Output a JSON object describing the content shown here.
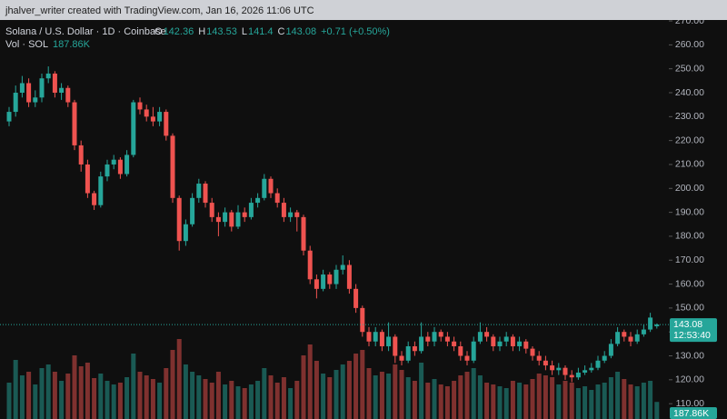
{
  "chart_data": {
    "type": "candlestick",
    "attribution": "jhalver_writer created with TradingView.com, Jan 16, 2026 11:06 UTC",
    "title": "Solana / U.S. Dollar · 1D · Coinbase",
    "ohlc_letters": [
      "O",
      "H",
      "L",
      "C"
    ],
    "change_label": "+0.71 (+0.50%)",
    "countdown": "12:53:40",
    "up_color": "#26a69a",
    "down_color": "#ef5350",
    "ylim": [
      103.6,
      270.4
    ],
    "yticks": [
      {
        "value": 110,
        "label": "110.00"
      },
      {
        "value": 120,
        "label": "120.00"
      },
      {
        "value": 130,
        "label": "130.00"
      },
      {
        "value": 140,
        "label": "140.00"
      },
      {
        "value": 150,
        "label": "150.00"
      },
      {
        "value": 160,
        "label": "160.00"
      },
      {
        "value": 170,
        "label": "170.00"
      },
      {
        "value": 180,
        "label": "180.00"
      },
      {
        "value": 190,
        "label": "190.00"
      },
      {
        "value": 200,
        "label": "200.00"
      },
      {
        "value": 210,
        "label": "210.00"
      },
      {
        "value": 220,
        "label": "220.00"
      },
      {
        "value": 230,
        "label": "230.00"
      },
      {
        "value": 240,
        "label": "240.00"
      },
      {
        "value": 250,
        "label": "250.00"
      },
      {
        "value": 260,
        "label": "260.00"
      },
      {
        "value": 270,
        "label": "270.00"
      }
    ],
    "candles": [
      [
        228,
        234,
        226,
        232
      ],
      [
        232,
        243,
        230,
        240
      ],
      [
        240,
        247,
        238,
        244
      ],
      [
        244,
        246,
        234,
        236
      ],
      [
        236,
        241,
        234,
        238
      ],
      [
        238,
        248,
        236,
        246
      ],
      [
        246,
        251,
        244,
        248
      ],
      [
        248,
        249,
        238,
        240
      ],
      [
        240,
        244,
        237,
        242
      ],
      [
        242,
        243,
        234,
        236
      ],
      [
        236,
        237,
        216,
        218
      ],
      [
        218,
        220,
        207,
        210
      ],
      [
        210,
        212,
        196,
        198
      ],
      [
        198,
        199,
        191,
        193
      ],
      [
        193,
        207,
        192,
        205
      ],
      [
        205,
        212,
        203,
        210
      ],
      [
        210,
        214,
        208,
        212
      ],
      [
        212,
        213,
        204,
        206
      ],
      [
        206,
        216,
        205,
        214
      ],
      [
        214,
        237,
        213,
        236
      ],
      [
        236,
        238,
        231,
        233
      ],
      [
        233,
        235,
        228,
        230
      ],
      [
        230,
        234,
        226,
        228
      ],
      [
        228,
        234,
        226,
        232
      ],
      [
        232,
        233,
        220,
        222
      ],
      [
        222,
        223,
        194,
        196
      ],
      [
        196,
        197,
        174,
        178
      ],
      [
        178,
        187,
        176,
        185
      ],
      [
        185,
        198,
        184,
        196
      ],
      [
        196,
        204,
        194,
        202
      ],
      [
        202,
        203,
        192,
        194
      ],
      [
        194,
        196,
        186,
        188
      ],
      [
        188,
        190,
        180,
        186
      ],
      [
        186,
        192,
        184,
        190
      ],
      [
        190,
        191,
        182,
        184
      ],
      [
        184,
        193,
        183,
        190
      ],
      [
        190,
        192,
        186,
        188
      ],
      [
        188,
        196,
        187,
        194
      ],
      [
        194,
        198,
        192,
        196
      ],
      [
        196,
        206,
        195,
        204
      ],
      [
        204,
        205,
        196,
        198
      ],
      [
        198,
        200,
        192,
        194
      ],
      [
        194,
        196,
        186,
        188
      ],
      [
        188,
        192,
        186,
        190
      ],
      [
        190,
        191,
        182,
        188
      ],
      [
        188,
        189,
        172,
        174
      ],
      [
        174,
        176,
        160,
        162
      ],
      [
        162,
        164,
        154,
        158
      ],
      [
        158,
        166,
        157,
        164
      ],
      [
        164,
        165,
        158,
        160
      ],
      [
        160,
        168,
        158,
        166
      ],
      [
        166,
        172,
        164,
        168
      ],
      [
        168,
        170,
        156,
        158
      ],
      [
        158,
        160,
        148,
        150
      ],
      [
        150,
        151,
        138,
        140
      ],
      [
        140,
        142,
        134,
        136
      ],
      [
        136,
        142,
        134,
        140
      ],
      [
        140,
        141,
        132,
        134
      ],
      [
        134,
        144,
        132,
        138
      ],
      [
        138,
        139,
        127,
        130
      ],
      [
        130,
        132,
        126,
        128
      ],
      [
        128,
        136,
        127,
        134
      ],
      [
        134,
        136,
        130,
        132
      ],
      [
        132,
        144,
        131,
        138
      ],
      [
        138,
        140,
        134,
        136
      ],
      [
        136,
        142,
        134,
        140
      ],
      [
        140,
        141,
        136,
        138
      ],
      [
        138,
        140,
        134,
        136
      ],
      [
        136,
        138,
        132,
        134
      ],
      [
        134,
        136,
        128,
        130
      ],
      [
        130,
        132,
        126,
        128
      ],
      [
        128,
        138,
        127,
        136
      ],
      [
        136,
        144,
        135,
        140
      ],
      [
        140,
        142,
        136,
        138
      ],
      [
        138,
        139,
        132,
        134
      ],
      [
        134,
        138,
        132,
        136
      ],
      [
        136,
        140,
        134,
        138
      ],
      [
        138,
        139,
        132,
        134
      ],
      [
        134,
        138,
        132,
        136
      ],
      [
        136,
        137,
        131,
        133
      ],
      [
        133,
        134,
        128,
        130
      ],
      [
        130,
        132,
        126,
        128
      ],
      [
        128,
        130,
        124,
        126
      ],
      [
        126,
        128,
        122,
        124
      ],
      [
        124,
        127,
        122,
        125
      ],
      [
        125,
        126,
        120,
        122
      ],
      [
        122,
        124,
        119,
        121
      ],
      [
        121,
        125,
        120,
        123
      ],
      [
        123,
        126,
        122,
        124
      ],
      [
        124,
        127,
        123,
        125
      ],
      [
        125,
        130,
        124,
        128
      ],
      [
        128,
        132,
        127,
        130
      ],
      [
        130,
        137,
        129,
        135
      ],
      [
        135,
        142,
        134,
        140
      ],
      [
        140,
        141,
        136,
        138
      ],
      [
        138,
        140,
        134,
        136
      ],
      [
        136,
        141,
        135,
        139
      ],
      [
        139,
        143,
        138,
        141
      ],
      [
        141,
        148,
        140,
        146
      ],
      [
        142.36,
        143.53,
        141.4,
        143.08
      ]
    ],
    "volume": {
      "name": "Vol · SOL",
      "values": [
        400,
        650,
        480,
        520,
        380,
        560,
        600,
        520,
        420,
        500,
        700,
        580,
        620,
        450,
        500,
        420,
        380,
        400,
        460,
        720,
        520,
        480,
        440,
        400,
        560,
        760,
        880,
        600,
        520,
        480,
        440,
        400,
        520,
        380,
        420,
        360,
        340,
        380,
        420,
        560,
        480,
        400,
        460,
        340,
        420,
        700,
        820,
        640,
        500,
        460,
        540,
        600,
        640,
        720,
        760,
        560,
        480,
        520,
        500,
        600,
        540,
        460,
        420,
        620,
        400,
        440,
        380,
        360,
        420,
        480,
        520,
        560,
        480,
        400,
        380,
        360,
        340,
        420,
        400,
        380,
        440,
        500,
        480,
        460,
        380,
        420,
        400,
        340,
        360,
        320,
        380,
        400,
        460,
        520,
        440,
        380,
        360,
        400,
        420,
        187.86
      ],
      "last_label": "187.86K"
    }
  }
}
